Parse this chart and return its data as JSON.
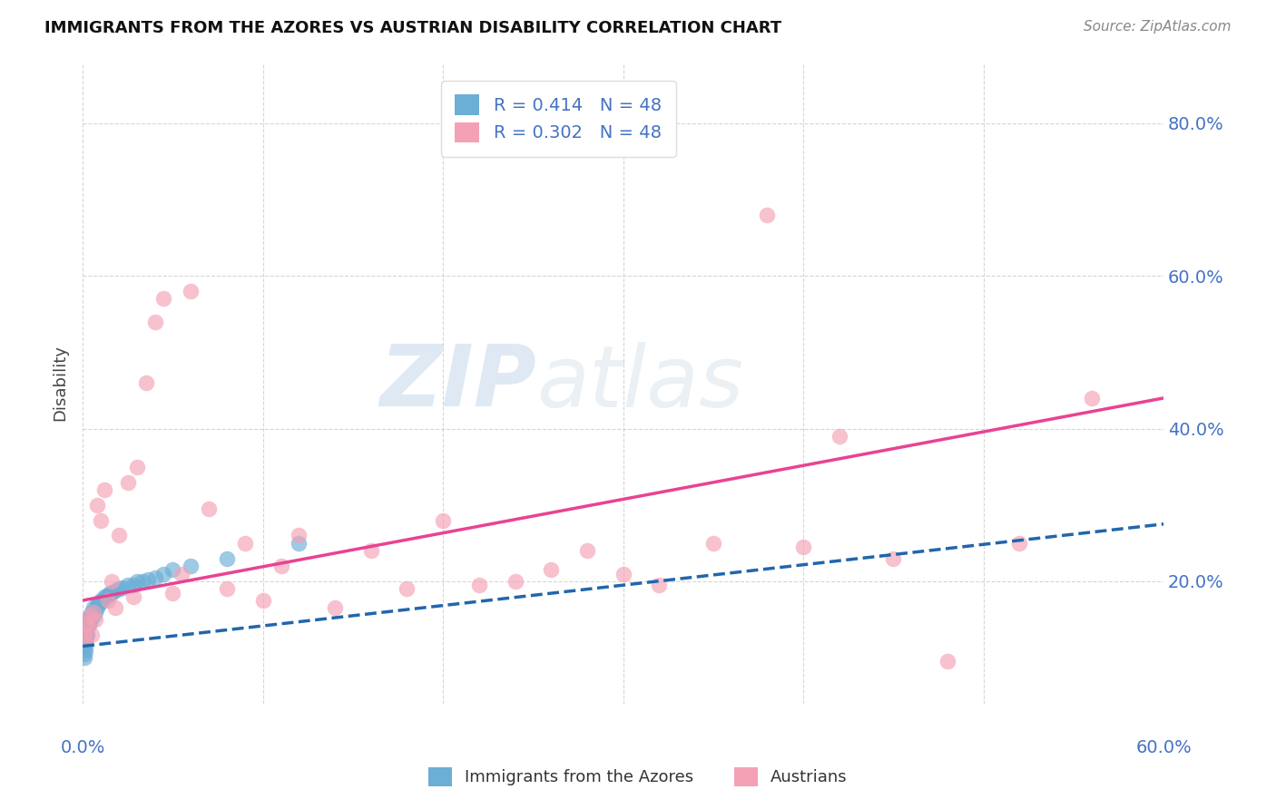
{
  "title": "IMMIGRANTS FROM THE AZORES VS AUSTRIAN DISABILITY CORRELATION CHART",
  "source": "Source: ZipAtlas.com",
  "ylabel": "Disability",
  "y_tick_labels": [
    "80.0%",
    "60.0%",
    "40.0%",
    "20.0%"
  ],
  "y_tick_values": [
    0.8,
    0.6,
    0.4,
    0.2
  ],
  "xlim": [
    0.0,
    0.6
  ],
  "ylim": [
    0.04,
    0.88
  ],
  "watermark": "ZIPatlas",
  "color_blue": "#6baed6",
  "color_pink": "#f4a0b5",
  "line_color_blue": "#2166ac",
  "line_color_pink": "#e84393",
  "legend_label1": "Immigrants from the Azores",
  "legend_label2": "Austrians",
  "azores_x": [
    0.0005,
    0.0008,
    0.001,
    0.001,
    0.0012,
    0.0013,
    0.0015,
    0.0015,
    0.002,
    0.002,
    0.002,
    0.0022,
    0.0025,
    0.003,
    0.003,
    0.003,
    0.004,
    0.004,
    0.004,
    0.005,
    0.005,
    0.006,
    0.006,
    0.007,
    0.008,
    0.008,
    0.009,
    0.01,
    0.011,
    0.012,
    0.013,
    0.014,
    0.015,
    0.016,
    0.018,
    0.02,
    0.022,
    0.025,
    0.028,
    0.03,
    0.033,
    0.036,
    0.04,
    0.045,
    0.05,
    0.06,
    0.08,
    0.12
  ],
  "azores_y": [
    0.115,
    0.1,
    0.105,
    0.13,
    0.12,
    0.115,
    0.125,
    0.11,
    0.13,
    0.14,
    0.135,
    0.145,
    0.13,
    0.14,
    0.15,
    0.145,
    0.15,
    0.155,
    0.145,
    0.155,
    0.16,
    0.155,
    0.165,
    0.16,
    0.165,
    0.17,
    0.17,
    0.175,
    0.175,
    0.18,
    0.18,
    0.182,
    0.185,
    0.185,
    0.188,
    0.19,
    0.192,
    0.195,
    0.195,
    0.2,
    0.2,
    0.202,
    0.205,
    0.21,
    0.215,
    0.22,
    0.23,
    0.25
  ],
  "austrians_x": [
    0.0005,
    0.001,
    0.002,
    0.003,
    0.004,
    0.005,
    0.006,
    0.007,
    0.008,
    0.01,
    0.012,
    0.014,
    0.016,
    0.018,
    0.02,
    0.025,
    0.028,
    0.03,
    0.035,
    0.04,
    0.045,
    0.05,
    0.055,
    0.06,
    0.07,
    0.08,
    0.09,
    0.1,
    0.11,
    0.12,
    0.14,
    0.16,
    0.18,
    0.2,
    0.22,
    0.24,
    0.26,
    0.28,
    0.3,
    0.32,
    0.35,
    0.38,
    0.4,
    0.42,
    0.45,
    0.48,
    0.52,
    0.56
  ],
  "austrians_y": [
    0.13,
    0.125,
    0.145,
    0.14,
    0.155,
    0.13,
    0.16,
    0.15,
    0.3,
    0.28,
    0.32,
    0.175,
    0.2,
    0.165,
    0.26,
    0.33,
    0.18,
    0.35,
    0.46,
    0.54,
    0.57,
    0.185,
    0.21,
    0.58,
    0.295,
    0.19,
    0.25,
    0.175,
    0.22,
    0.26,
    0.165,
    0.24,
    0.19,
    0.28,
    0.195,
    0.2,
    0.215,
    0.24,
    0.21,
    0.195,
    0.25,
    0.68,
    0.245,
    0.39,
    0.23,
    0.095,
    0.25,
    0.44
  ]
}
